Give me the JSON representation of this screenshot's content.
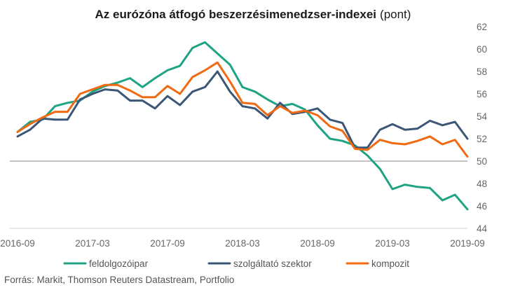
{
  "chart_data": {
    "type": "line",
    "title": "Az eurózóna átfogó beszerzésimenedzser-indexei",
    "title_unit": "(pont)",
    "source": "Forrás: Markit, Thomson Reuters Datastream, Portfolio",
    "x": [
      "2016-09",
      "2016-10",
      "2016-11",
      "2016-12",
      "2017-01",
      "2017-02",
      "2017-03",
      "2017-04",
      "2017-05",
      "2017-06",
      "2017-07",
      "2017-08",
      "2017-09",
      "2017-10",
      "2017-11",
      "2017-12",
      "2018-01",
      "2018-02",
      "2018-03",
      "2018-04",
      "2018-05",
      "2018-06",
      "2018-07",
      "2018-08",
      "2018-09",
      "2018-10",
      "2018-11",
      "2018-12",
      "2019-01",
      "2019-02",
      "2019-03",
      "2019-04",
      "2019-05",
      "2019-06",
      "2019-07",
      "2019-08",
      "2019-09"
    ],
    "x_ticks": [
      "2016-09",
      "2017-03",
      "2017-09",
      "2018-03",
      "2018-09",
      "2019-03",
      "2019-09"
    ],
    "y_ticks": [
      44,
      46,
      48,
      50,
      52,
      54,
      56,
      58,
      60,
      62
    ],
    "ylim": [
      44,
      62
    ],
    "y_axis_side": "right",
    "reference_line": 50,
    "grid": false,
    "legend_position": "bottom",
    "series": [
      {
        "name": "feldolgozóipar",
        "color": "#1ea383",
        "values": [
          52.6,
          53.5,
          53.7,
          54.9,
          55.2,
          55.4,
          56.2,
          56.7,
          57.0,
          57.4,
          56.6,
          57.4,
          58.1,
          58.5,
          60.1,
          60.6,
          59.6,
          58.6,
          56.6,
          56.2,
          55.5,
          54.9,
          55.1,
          54.6,
          53.2,
          52.0,
          51.8,
          51.4,
          50.5,
          49.3,
          47.5,
          47.9,
          47.7,
          47.6,
          46.5,
          47.0,
          45.7
        ]
      },
      {
        "name": "szolgáltató szektor",
        "color": "#3b5676",
        "values": [
          52.2,
          52.8,
          53.8,
          53.7,
          53.7,
          55.5,
          56.0,
          56.4,
          56.3,
          55.4,
          55.4,
          54.7,
          55.8,
          55.0,
          56.2,
          56.6,
          58.0,
          56.2,
          54.9,
          54.7,
          53.8,
          55.2,
          54.2,
          54.4,
          54.7,
          53.7,
          53.4,
          51.2,
          51.2,
          52.8,
          53.3,
          52.8,
          52.9,
          53.6,
          53.2,
          53.5,
          52.0
        ]
      },
      {
        "name": "kompozit",
        "color": "#f06a12",
        "values": [
          52.6,
          53.3,
          53.9,
          54.4,
          54.4,
          56.0,
          56.4,
          56.8,
          56.8,
          56.3,
          55.7,
          55.7,
          56.7,
          56.0,
          57.5,
          58.1,
          58.8,
          57.1,
          55.2,
          55.1,
          54.1,
          54.9,
          54.3,
          54.5,
          54.1,
          53.1,
          52.7,
          51.1,
          51.0,
          51.9,
          51.6,
          51.5,
          51.8,
          52.2,
          51.5,
          51.9,
          50.4
        ]
      }
    ]
  }
}
